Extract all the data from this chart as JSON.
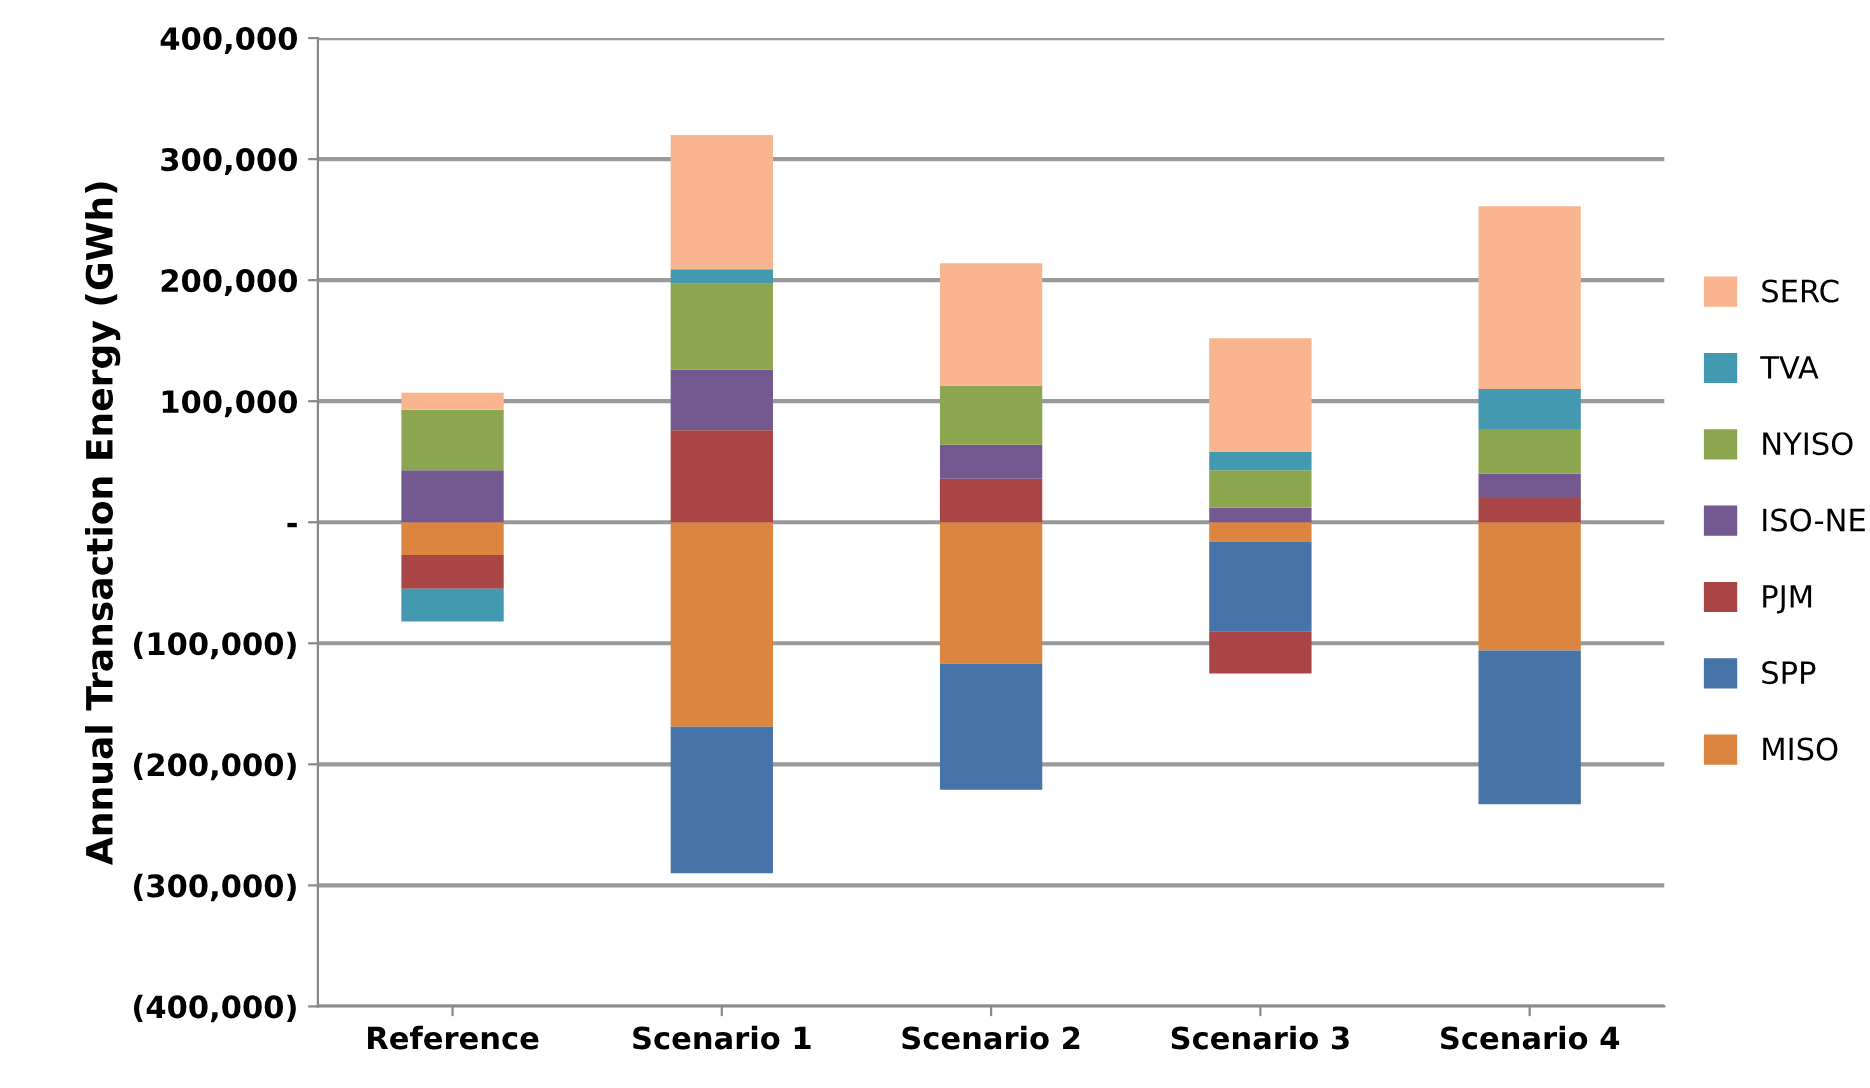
{
  "chart_data": {
    "type": "bar",
    "stacked": true,
    "ylabel": "Annual Transaction Energy (GWh)",
    "categories": [
      "Reference",
      "Scenario 1",
      "Scenario 2",
      "Scenario 3",
      "Scenario 4"
    ],
    "series": [
      {
        "name": "MISO",
        "color": "#db8540",
        "values": [
          -27000,
          -169000,
          -117000,
          -16000,
          -106000
        ]
      },
      {
        "name": "SPP",
        "color": "#4674a8",
        "values": [
          0,
          -121000,
          -104000,
          -74000,
          -127000
        ]
      },
      {
        "name": "PJM",
        "color": "#a94544",
        "values": [
          -28000,
          76000,
          36000,
          -35000,
          20000
        ]
      },
      {
        "name": "ISO-NE",
        "color": "#73598f",
        "values": [
          43000,
          50000,
          28000,
          12000,
          20000
        ]
      },
      {
        "name": "NYISO",
        "color": "#8ba64f",
        "values": [
          50000,
          71000,
          49000,
          31000,
          37000
        ]
      },
      {
        "name": "TVA",
        "color": "#4299b0",
        "values": [
          -27000,
          12000,
          0,
          15000,
          33000
        ]
      },
      {
        "name": "SERC",
        "color": "#f9b58f",
        "values": [
          14000,
          111000,
          101000,
          94000,
          151000
        ]
      }
    ],
    "ylim": [
      -400000,
      400000
    ],
    "yticks": [
      {
        "value": -400000,
        "label": "(400,000)"
      },
      {
        "value": -300000,
        "label": "(300,000)"
      },
      {
        "value": -200000,
        "label": "(200,000)"
      },
      {
        "value": -100000,
        "label": "(100,000)"
      },
      {
        "value": 0,
        "label": "-"
      },
      {
        "value": 100000,
        "label": "100,000"
      },
      {
        "value": 200000,
        "label": "200,000"
      },
      {
        "value": 300000,
        "label": "300,000"
      },
      {
        "value": 400000,
        "label": "400,000"
      }
    ],
    "grid": "y",
    "legend": "right"
  }
}
